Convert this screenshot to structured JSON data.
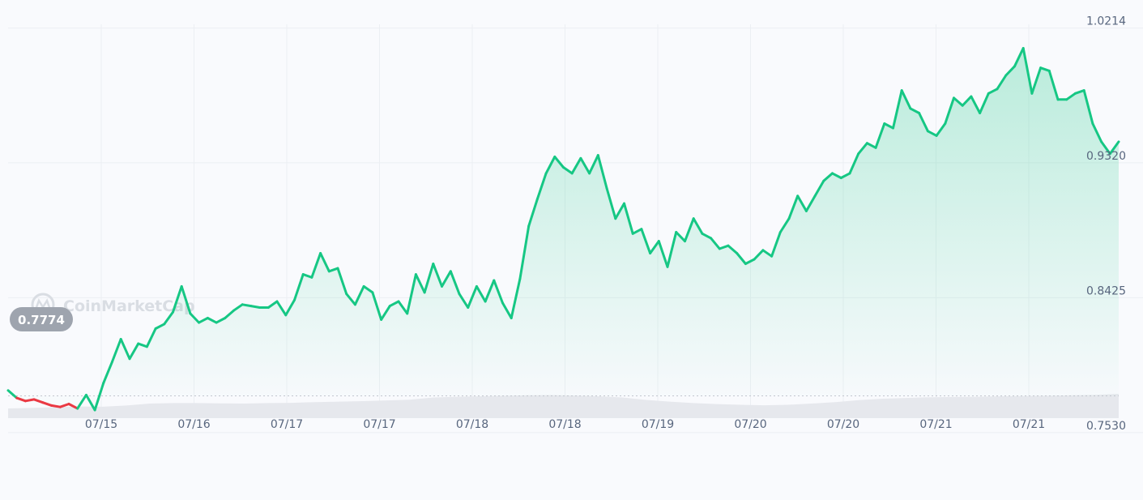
{
  "watermark": "CoinMarketCap",
  "colors": {
    "background": "#f9fafd",
    "up": "#16c784",
    "down": "#ea3943",
    "grid": "#eceff3",
    "volume": "#e6e8ed",
    "tag_bg": "#9ea4ae"
  },
  "chart_data": {
    "type": "area",
    "title": "",
    "xlabel": "",
    "ylabel": "",
    "reference_price": 0.7774,
    "reference_label": "0.7774",
    "y_ticks": [
      {
        "value": 1.0214,
        "label": "1.0214"
      },
      {
        "value": 0.932,
        "label": "0.9320"
      },
      {
        "value": 0.8425,
        "label": "0.8425"
      },
      {
        "value": 0.753,
        "label": "0.7530"
      }
    ],
    "ylim": [
      0.711,
      1.04
    ],
    "x_ticks": [
      "07/15",
      "07/16",
      "07/17",
      "07/17",
      "07/18",
      "07/18",
      "07/19",
      "07/20",
      "07/20",
      "07/21",
      "07/21"
    ],
    "grid": true,
    "series": [
      {
        "values": [
          0.781,
          0.776,
          0.774,
          0.775,
          0.773,
          0.771,
          0.77,
          0.772,
          0.769,
          0.778,
          0.768,
          0.786,
          0.8,
          0.815,
          0.802,
          0.812,
          0.81,
          0.822,
          0.825,
          0.833,
          0.85,
          0.832,
          0.826,
          0.829,
          0.826,
          0.829,
          0.834,
          0.838,
          0.837,
          0.836,
          0.836,
          0.84,
          0.831,
          0.841,
          0.858,
          0.856,
          0.872,
          0.86,
          0.862,
          0.845,
          0.838,
          0.85,
          0.846,
          0.828,
          0.837,
          0.84,
          0.832,
          0.858,
          0.846,
          0.865,
          0.85,
          0.86,
          0.845,
          0.836,
          0.85,
          0.84,
          0.854,
          0.839,
          0.829,
          0.855,
          0.89,
          0.908,
          0.925,
          0.936,
          0.929,
          0.925,
          0.935,
          0.925,
          0.937,
          0.915,
          0.895,
          0.905,
          0.885,
          0.888,
          0.872,
          0.88,
          0.863,
          0.886,
          0.88,
          0.895,
          0.885,
          0.882,
          0.875,
          0.877,
          0.872,
          0.865,
          0.868,
          0.874,
          0.87,
          0.886,
          0.895,
          0.91,
          0.9,
          0.91,
          0.92,
          0.925,
          0.922,
          0.925,
          0.938,
          0.945,
          0.942,
          0.958,
          0.955,
          0.98,
          0.968,
          0.965,
          0.953,
          0.95,
          0.958,
          0.975,
          0.97,
          0.976,
          0.965,
          0.978,
          0.981,
          0.99,
          0.996,
          1.008,
          0.978,
          0.995,
          0.993,
          0.974,
          0.974,
          0.978,
          0.98,
          0.958,
          0.946,
          0.938,
          0.946
        ]
      }
    ]
  }
}
